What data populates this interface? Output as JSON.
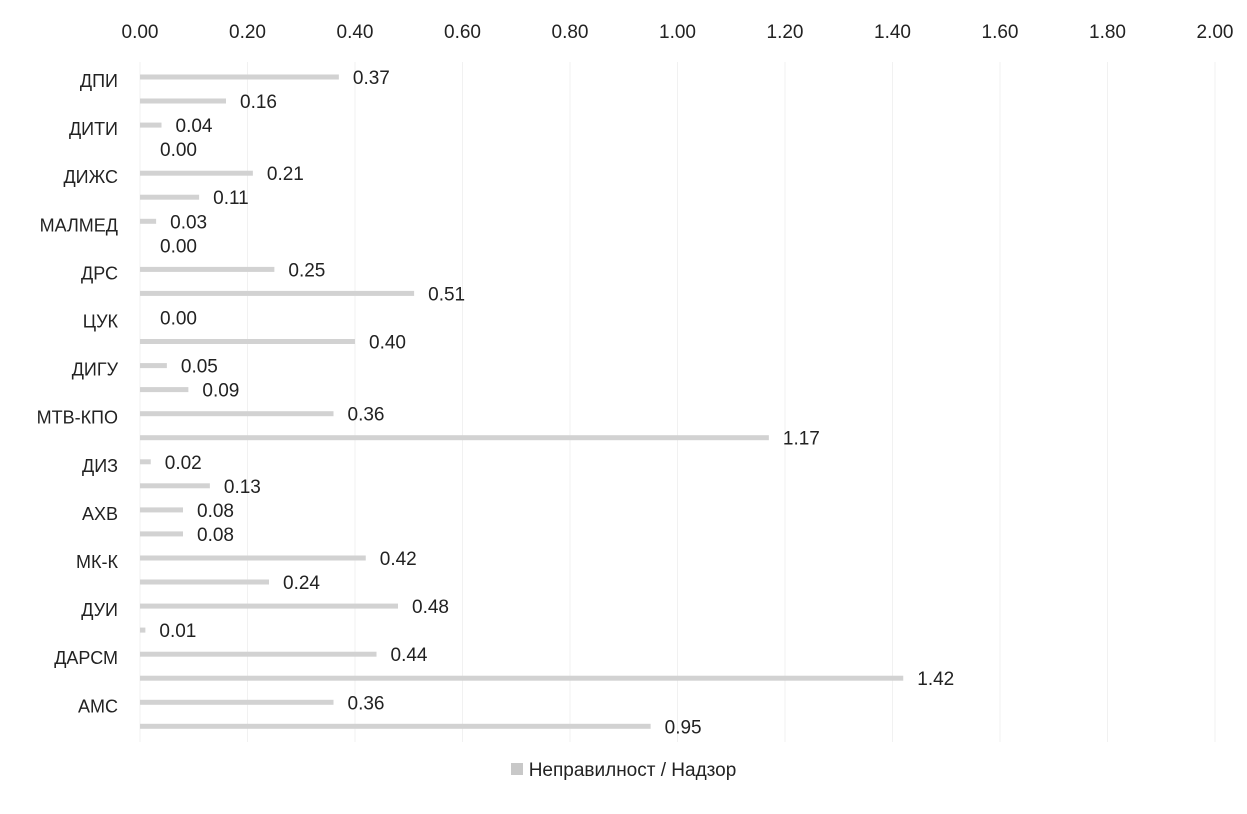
{
  "chart_data": {
    "type": "bar",
    "orientation": "horizontal",
    "categories": [
      "ДПИ",
      "ДИТИ",
      "ДИЖС",
      "МАЛМЕД",
      "ДРС",
      "ЦУК",
      "ДИГУ",
      "МТВ-КПО",
      "ДИЗ",
      "АХВ",
      "МК-К",
      "ДУИ",
      "ДАРСМ",
      "АМС"
    ],
    "series": [
      {
        "values": [
          0.37,
          0.04,
          0.21,
          0.03,
          0.25,
          0.0,
          0.05,
          0.36,
          0.02,
          0.08,
          0.42,
          0.48,
          0.44,
          0.36
        ],
        "labels": [
          "0.37",
          "0.04",
          "0.21",
          "0.03",
          "0.25",
          "0.00",
          "0.05",
          "0.36",
          "0.02",
          "0.08",
          "0.42",
          "0.48",
          "0.44",
          "0.36"
        ]
      },
      {
        "name": "Неправилност / Надзор",
        "values": [
          0.16,
          0.0,
          0.11,
          0.0,
          0.51,
          0.4,
          0.09,
          1.17,
          0.13,
          0.08,
          0.24,
          0.01,
          1.42,
          0.95
        ],
        "labels": [
          "0.16",
          "0.00",
          "0.11",
          "0.00",
          "0.51",
          "0.40",
          "0.09",
          "1.17",
          "0.13",
          "0.08",
          "0.24",
          "0.01",
          "1.42",
          "0.95"
        ]
      }
    ],
    "x_ticks": [
      "0.00",
      "0.20",
      "0.40",
      "0.60",
      "0.80",
      "1.00",
      "1.20",
      "1.40",
      "1.60",
      "1.80",
      "2.00"
    ],
    "xlim": [
      0,
      2
    ],
    "x_axis_position": "top",
    "grid": true,
    "legend_position": "bottom",
    "colors": {
      "bar": "#d2d2d2",
      "grid": "#f1f1f1",
      "text": "#222222",
      "legend_swatch": "#c8c8c8"
    }
  },
  "legend": {
    "label": "Неправилност / Надзор"
  }
}
